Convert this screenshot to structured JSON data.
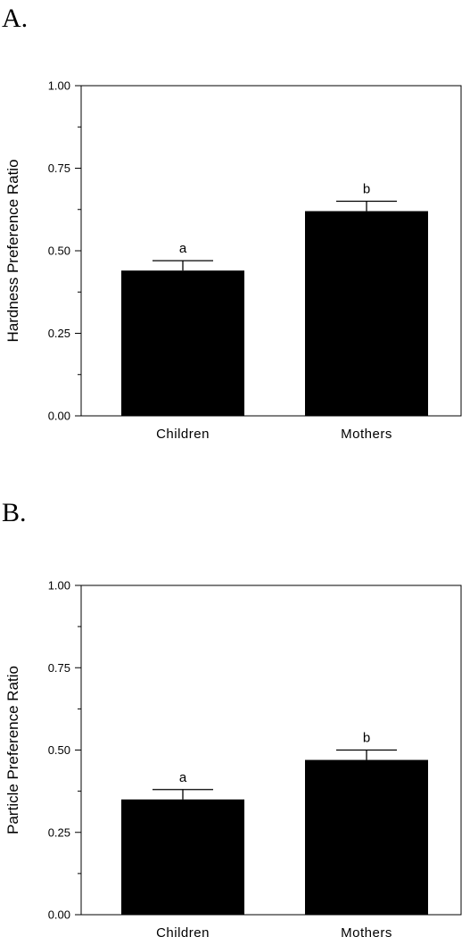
{
  "panels": [
    {
      "label": "A."
    },
    {
      "label": "B."
    }
  ],
  "chart_data": [
    {
      "type": "bar",
      "categories": [
        "Children",
        "Mothers"
      ],
      "values": [
        0.44,
        0.62
      ],
      "error": [
        0.03,
        0.03
      ],
      "significance": [
        "a",
        "b"
      ],
      "ylabel": "Hardness Preference Ratio",
      "xlabel": "",
      "ylim": [
        0,
        1.0
      ],
      "yticks": [
        "0.00",
        "0.25",
        "0.50",
        "0.75",
        "1.00"
      ],
      "ytick_values": [
        0,
        0.25,
        0.5,
        0.75,
        1.0
      ],
      "grid": false,
      "bar_color": "#000000"
    },
    {
      "type": "bar",
      "categories": [
        "Children",
        "Mothers"
      ],
      "values": [
        0.35,
        0.47
      ],
      "error": [
        0.03,
        0.03
      ],
      "significance": [
        "a",
        "b"
      ],
      "ylabel": "Particle Preference Ratio",
      "xlabel": "",
      "ylim": [
        0,
        1.0
      ],
      "yticks": [
        "0.00",
        "0.25",
        "0.50",
        "0.75",
        "1.00"
      ],
      "ytick_values": [
        0,
        0.25,
        0.5,
        0.75,
        1.0
      ],
      "grid": false,
      "bar_color": "#000000"
    }
  ]
}
